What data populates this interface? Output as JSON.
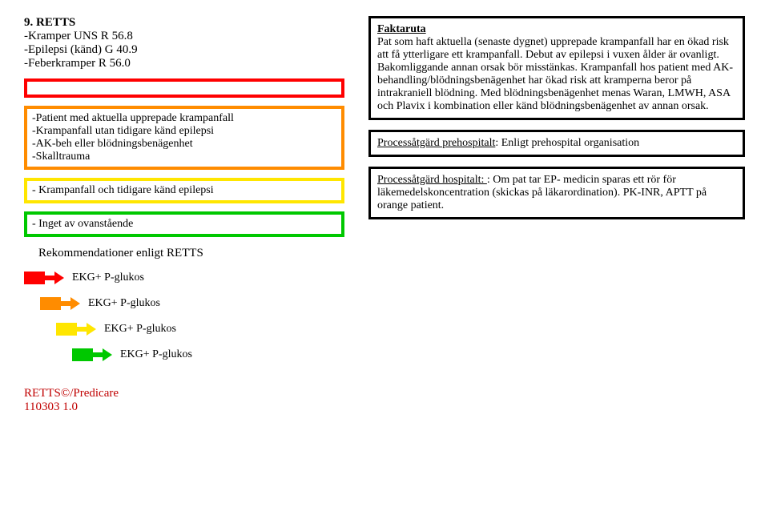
{
  "heading": "9. RETTS",
  "diagnoses": [
    "-Kramper UNS R 56.8",
    "-Epilepsi (känd) G 40.9",
    "-Feberkramper R 56.0"
  ],
  "red_box": {
    "text": ""
  },
  "orange_box": {
    "lines": [
      "-Patient med aktuella upprepade krampanfall",
      "-Krampanfall utan tidigare känd epilepsi",
      "-AK-beh eller blödningsbenägenhet",
      "-Skalltrauma"
    ]
  },
  "yellow_box": {
    "text": "- Krampanfall och tidigare känd epilepsi"
  },
  "green_box": {
    "text": "- Inget av ovanstående"
  },
  "recs_title": "Rekommendationer enligt RETTS",
  "rec_items": [
    {
      "color": "#ff0000",
      "label": "EKG+ P-glukos"
    },
    {
      "color": "#ff8c00",
      "label": "EKG+ P-glukos"
    },
    {
      "color": "#ffe600",
      "label": "EKG+ P-glukos"
    },
    {
      "color": "#00c800",
      "label": "EKG+ P-glukos"
    }
  ],
  "faktaruta": {
    "title": "Faktaruta",
    "body": "Pat som haft aktuella (senaste dygnet) upprepade krampanfall har en ökad risk att få ytterligare ett krampanfall. Debut av epilepsi i vuxen ålder är ovanligt. Bakomliggande annan orsak bör misstänkas. Krampanfall hos patient med AK-behandling/blödningsbenägenhet har ökad risk att kramperna beror på intrakraniell blödning. Med blödningsbenägenhet menas Waran, LMWH, ASA och Plavix i kombination eller känd blödningsbenägenhet av annan orsak."
  },
  "prehosp": {
    "label": "Processåtgärd prehospitalt",
    "text": ": Enligt prehospital organisation"
  },
  "hosp": {
    "label": "Processåtgärd hospitalt: ",
    "text": ": Om pat tar EP- medicin sparas ett rör för läkemedelskoncentration (skickas på läkarordination). PK-INR, APTT på orange patient."
  },
  "footer_l1": "RETTS©/Predicare",
  "footer_l2": "110303 1.0",
  "colors": {
    "red": "#ff0000",
    "orange": "#ff8c00",
    "yellow": "#ffe600",
    "green": "#00c800",
    "footer": "#c00000"
  }
}
